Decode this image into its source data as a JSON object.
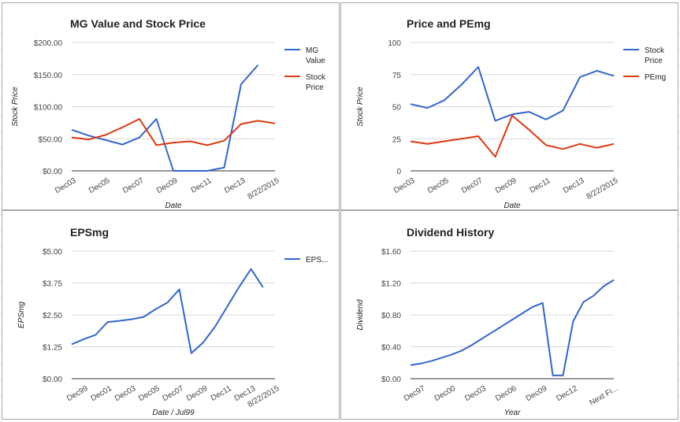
{
  "colors": {
    "blue": "#3366cc",
    "red": "#dc3912"
  },
  "chart_data": [
    {
      "type": "line",
      "title": "MG Value and Stock Price",
      "xlabel": "Date",
      "ylabel": "Stock Price",
      "x_tick_labels": [
        "Dec03",
        "Dec05",
        "Dec07",
        "Dec09",
        "Dec11",
        "Dec13",
        "8/22/2015"
      ],
      "y_tick_labels": [
        "$0.00",
        "$50.00",
        "$100.00",
        "$150.00",
        "$200.00"
      ],
      "y_ticks": [
        0,
        50,
        100,
        150,
        200
      ],
      "ylim": [
        0,
        200
      ],
      "grid": true,
      "legend_position": "right",
      "x": [
        "Dec03",
        "Dec04",
        "Dec05",
        "Dec06",
        "Dec07",
        "Dec08",
        "Dec09",
        "Dec10",
        "Dec11",
        "Dec12",
        "Dec13",
        "Dec14",
        "8/22/2015"
      ],
      "series": [
        {
          "name": "MG Value",
          "color": "#3366cc",
          "values": [
            64,
            55,
            48,
            41,
            52,
            81,
            0,
            0,
            0,
            5,
            135,
            165,
            null
          ]
        },
        {
          "name": "Stock Price",
          "color": "#dc3912",
          "values": [
            52,
            49,
            56,
            68,
            81,
            40,
            44,
            46,
            40,
            47,
            73,
            78,
            74
          ]
        }
      ]
    },
    {
      "type": "line",
      "title": "Price and PEmg",
      "xlabel": "Date",
      "ylabel": "Stock Price",
      "x_tick_labels": [
        "Dec03",
        "Dec05",
        "Dec07",
        "Dec09",
        "Dec11",
        "Dec13",
        "8/22/2015"
      ],
      "y_tick_labels": [
        "0",
        "25",
        "50",
        "75",
        "100"
      ],
      "y_ticks": [
        0,
        25,
        50,
        75,
        100
      ],
      "ylim": [
        0,
        100
      ],
      "grid": true,
      "legend_position": "right",
      "x": [
        "Dec03",
        "Dec04",
        "Dec05",
        "Dec06",
        "Dec07",
        "Dec08",
        "Dec09",
        "Dec10",
        "Dec11",
        "Dec12",
        "Dec13",
        "Dec14",
        "8/22/2015"
      ],
      "series": [
        {
          "name": "Stock Price",
          "color": "#3366cc",
          "values": [
            52,
            49,
            55,
            67,
            81,
            39,
            44,
            46,
            40,
            47,
            73,
            78,
            74
          ]
        },
        {
          "name": "PEmg",
          "color": "#dc3912",
          "values": [
            23,
            21,
            23,
            25,
            27,
            11,
            43,
            32,
            20,
            17,
            21,
            18,
            21
          ]
        }
      ]
    },
    {
      "type": "line",
      "title": "EPSmg",
      "xlabel": "Date / Jul99",
      "ylabel": "EPSmg",
      "x_tick_labels": [
        "Dec99",
        "Dec01",
        "Dec03",
        "Dec05",
        "Dec07",
        "Dec09",
        "Dec11",
        "Dec13",
        "8/22/2015"
      ],
      "y_tick_labels": [
        "$0.00",
        "$1.25",
        "$2.50",
        "$3.75",
        "$5.00"
      ],
      "y_ticks": [
        0,
        1.25,
        2.5,
        3.75,
        5
      ],
      "ylim": [
        0,
        5
      ],
      "grid": true,
      "legend_position": "right",
      "x": [
        "Jul99",
        "Dec99",
        "Dec00",
        "Dec01",
        "Dec02",
        "Dec03",
        "Dec04",
        "Dec05",
        "Dec06",
        "Dec07",
        "Dec08",
        "Dec09",
        "Dec10",
        "Dec11",
        "Dec12",
        "Dec13",
        "Dec14",
        "8/22/2015"
      ],
      "series": [
        {
          "name": "EPS...",
          "color": "#3366cc",
          "values": [
            1.35,
            1.55,
            1.72,
            2.22,
            2.27,
            2.33,
            2.42,
            2.72,
            2.98,
            3.5,
            1.0,
            1.42,
            2.05,
            2.82,
            3.6,
            4.3,
            3.58,
            null
          ]
        }
      ]
    },
    {
      "type": "line",
      "title": "Dividend History",
      "xlabel": "Year",
      "ylabel": "Dividend",
      "x_tick_labels": [
        "Dec97",
        "Dec00",
        "Dec03",
        "Dec06",
        "Dec09",
        "Dec12",
        "Next Fi..."
      ],
      "y_tick_labels": [
        "$0.00",
        "$0.40",
        "$0.80",
        "$1.20",
        "$1.60"
      ],
      "y_ticks": [
        0,
        0.4,
        0.8,
        1.2,
        1.6
      ],
      "ylim": [
        0,
        1.6
      ],
      "grid": true,
      "legend_position": "none",
      "x": [
        "Dec96",
        "Dec97",
        "Dec98",
        "Dec99",
        "Dec00",
        "Dec01",
        "Dec02",
        "Dec03",
        "Dec04",
        "Dec05",
        "Dec06",
        "Dec07",
        "Dec08",
        "Dec09",
        "Dec10",
        "Dec11",
        "Dec12",
        "Dec13",
        "Dec14",
        "Dec15",
        "Next Fi..."
      ],
      "series": [
        {
          "name": "",
          "color": "#3366cc",
          "values": [
            0.17,
            0.19,
            0.22,
            0.26,
            0.3,
            0.35,
            0.42,
            0.5,
            0.58,
            0.66,
            0.74,
            0.82,
            0.9,
            0.95,
            0.04,
            0.04,
            0.72,
            0.96,
            1.04,
            1.16,
            1.24
          ]
        }
      ]
    }
  ]
}
